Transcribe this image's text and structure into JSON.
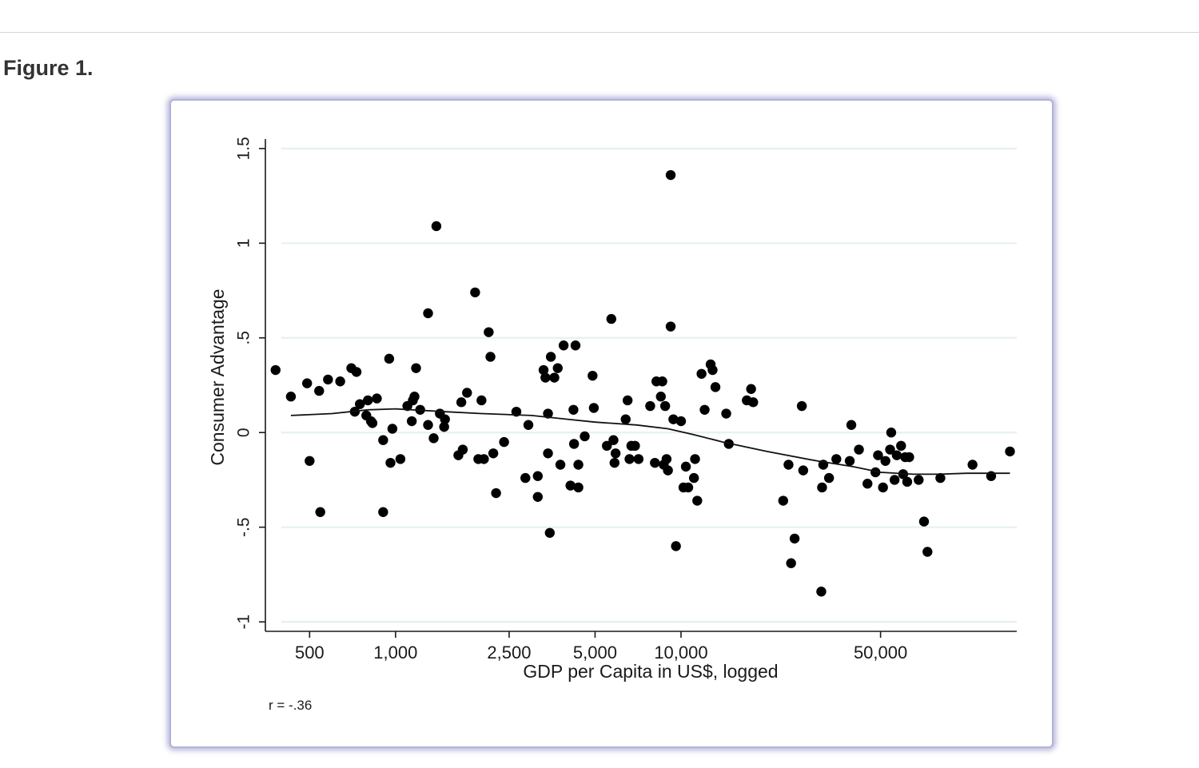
{
  "page": {
    "figure_title": "Figure 1."
  },
  "chart_data": {
    "type": "scatter",
    "xlabel": "GDP per Capita in US$, logged",
    "ylabel": "Consumer Advantage",
    "x_scale": "log",
    "xlim": [
      350,
      150000
    ],
    "ylim": [
      -1.05,
      1.55
    ],
    "x_ticks": [
      500,
      1000,
      2500,
      5000,
      10000,
      50000
    ],
    "x_tick_labels": [
      "500",
      "1,000",
      "2,500",
      "5,000",
      "10,000",
      "50,000"
    ],
    "y_ticks": [
      -1,
      -0.5,
      0,
      0.5,
      1,
      1.5
    ],
    "y_tick_labels": [
      "-1",
      "-.5",
      "0",
      ".5",
      "1",
      "1.5"
    ],
    "grid": "horizontal",
    "annotation": "r = -.36",
    "points": [
      [
        380,
        0.33
      ],
      [
        430,
        0.19
      ],
      [
        490,
        0.26
      ],
      [
        500,
        -0.15
      ],
      [
        540,
        0.22
      ],
      [
        545,
        -0.42
      ],
      [
        580,
        0.28
      ],
      [
        640,
        0.27
      ],
      [
        700,
        0.34
      ],
      [
        720,
        0.11
      ],
      [
        730,
        0.32
      ],
      [
        750,
        0.15
      ],
      [
        790,
        0.09
      ],
      [
        800,
        0.17
      ],
      [
        820,
        0.06
      ],
      [
        830,
        0.05
      ],
      [
        860,
        0.18
      ],
      [
        905,
        -0.04
      ],
      [
        905,
        -0.42
      ],
      [
        950,
        0.39
      ],
      [
        960,
        -0.16
      ],
      [
        975,
        0.02
      ],
      [
        1040,
        -0.14
      ],
      [
        1100,
        0.14
      ],
      [
        1140,
        0.06
      ],
      [
        1150,
        0.17
      ],
      [
        1165,
        0.19
      ],
      [
        1180,
        0.34
      ],
      [
        1220,
        0.12
      ],
      [
        1300,
        0.63
      ],
      [
        1300,
        0.04
      ],
      [
        1360,
        -0.03
      ],
      [
        1390,
        1.09
      ],
      [
        1430,
        0.1
      ],
      [
        1480,
        0.03
      ],
      [
        1490,
        0.07
      ],
      [
        1660,
        -0.12
      ],
      [
        1700,
        0.16
      ],
      [
        1720,
        -0.09
      ],
      [
        1780,
        0.21
      ],
      [
        1900,
        0.74
      ],
      [
        1950,
        -0.14
      ],
      [
        2000,
        0.17
      ],
      [
        2040,
        -0.14
      ],
      [
        2120,
        0.53
      ],
      [
        2150,
        0.4
      ],
      [
        2200,
        -0.11
      ],
      [
        2250,
        -0.32
      ],
      [
        2400,
        -0.05
      ],
      [
        2650,
        0.11
      ],
      [
        2850,
        -0.24
      ],
      [
        2920,
        0.04
      ],
      [
        3150,
        -0.23
      ],
      [
        3150,
        -0.34
      ],
      [
        3300,
        0.33
      ],
      [
        3350,
        0.29
      ],
      [
        3420,
        0.1
      ],
      [
        3420,
        -0.11
      ],
      [
        3470,
        -0.53
      ],
      [
        3500,
        0.4
      ],
      [
        3600,
        0.29
      ],
      [
        3700,
        0.34
      ],
      [
        3780,
        -0.17
      ],
      [
        3880,
        0.46
      ],
      [
        4100,
        -0.28
      ],
      [
        4200,
        0.12
      ],
      [
        4220,
        -0.06
      ],
      [
        4270,
        0.46
      ],
      [
        4370,
        -0.17
      ],
      [
        4370,
        -0.29
      ],
      [
        4600,
        -0.02
      ],
      [
        4900,
        0.3
      ],
      [
        4950,
        0.13
      ],
      [
        5500,
        -0.07
      ],
      [
        5700,
        0.6
      ],
      [
        5800,
        -0.04
      ],
      [
        5850,
        -0.16
      ],
      [
        5900,
        -0.11
      ],
      [
        6400,
        0.07
      ],
      [
        6500,
        0.17
      ],
      [
        6600,
        -0.14
      ],
      [
        6700,
        -0.07
      ],
      [
        6900,
        -0.07
      ],
      [
        7100,
        -0.14
      ],
      [
        7800,
        0.14
      ],
      [
        8100,
        -0.16
      ],
      [
        8200,
        0.27
      ],
      [
        8500,
        0.19
      ],
      [
        8600,
        0.27
      ],
      [
        8700,
        -0.17
      ],
      [
        8800,
        0.14
      ],
      [
        8900,
        -0.14
      ],
      [
        9000,
        -0.2
      ],
      [
        9200,
        1.36
      ],
      [
        9200,
        0.56
      ],
      [
        9400,
        0.07
      ],
      [
        9600,
        -0.6
      ],
      [
        10000,
        0.06
      ],
      [
        10200,
        -0.29
      ],
      [
        10400,
        -0.18
      ],
      [
        10600,
        -0.29
      ],
      [
        11100,
        -0.24
      ],
      [
        11200,
        -0.14
      ],
      [
        11400,
        -0.36
      ],
      [
        11800,
        0.31
      ],
      [
        12100,
        0.12
      ],
      [
        12700,
        0.36
      ],
      [
        12900,
        0.33
      ],
      [
        13200,
        0.24
      ],
      [
        14400,
        0.1
      ],
      [
        14700,
        -0.06
      ],
      [
        17000,
        0.17
      ],
      [
        17600,
        0.23
      ],
      [
        17900,
        0.16
      ],
      [
        22800,
        -0.36
      ],
      [
        23800,
        -0.17
      ],
      [
        24300,
        -0.69
      ],
      [
        25000,
        -0.56
      ],
      [
        26500,
        0.14
      ],
      [
        26800,
        -0.2
      ],
      [
        31000,
        -0.84
      ],
      [
        31200,
        -0.29
      ],
      [
        31500,
        -0.17
      ],
      [
        33000,
        -0.24
      ],
      [
        35000,
        -0.14
      ],
      [
        39000,
        -0.15
      ],
      [
        39500,
        0.04
      ],
      [
        42000,
        -0.09
      ],
      [
        45000,
        -0.27
      ],
      [
        48000,
        -0.21
      ],
      [
        49000,
        -0.12
      ],
      [
        51000,
        -0.29
      ],
      [
        52000,
        -0.15
      ],
      [
        54000,
        -0.09
      ],
      [
        54500,
        0.0
      ],
      [
        56000,
        -0.25
      ],
      [
        57000,
        -0.12
      ],
      [
        59000,
        -0.07
      ],
      [
        60000,
        -0.22
      ],
      [
        61000,
        -0.13
      ],
      [
        62000,
        -0.26
      ],
      [
        63000,
        -0.13
      ],
      [
        68000,
        -0.25
      ],
      [
        71000,
        -0.47
      ],
      [
        73000,
        -0.63
      ],
      [
        81000,
        -0.24
      ],
      [
        105000,
        -0.17
      ],
      [
        122000,
        -0.23
      ],
      [
        142000,
        -0.1
      ]
    ],
    "smoother": [
      [
        430,
        0.09
      ],
      [
        600,
        0.1
      ],
      [
        800,
        0.12
      ],
      [
        1000,
        0.125
      ],
      [
        1500,
        0.11
      ],
      [
        2000,
        0.1
      ],
      [
        3000,
        0.09
      ],
      [
        4000,
        0.07
      ],
      [
        5000,
        0.055
      ],
      [
        7000,
        0.04
      ],
      [
        9000,
        0.02
      ],
      [
        11000,
        -0.01
      ],
      [
        14000,
        -0.05
      ],
      [
        20000,
        -0.1
      ],
      [
        30000,
        -0.15
      ],
      [
        40000,
        -0.18
      ],
      [
        50000,
        -0.21
      ],
      [
        65000,
        -0.22
      ],
      [
        80000,
        -0.22
      ],
      [
        100000,
        -0.215
      ],
      [
        142000,
        -0.215
      ]
    ]
  }
}
